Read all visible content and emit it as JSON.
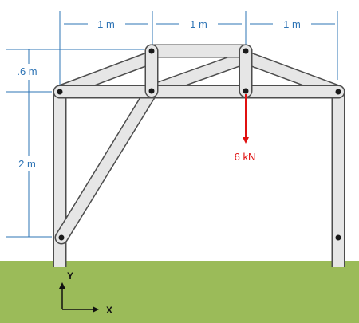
{
  "dimensions": {
    "horizontal": [
      "1 m",
      "1 m",
      "1 m"
    ],
    "rise": ".6 m",
    "column_height": "2 m"
  },
  "load": {
    "label": "6 kN",
    "color": "#e01010"
  },
  "axes": {
    "x_label": "X",
    "y_label": "Y"
  },
  "colors": {
    "ground": "#9bbb59",
    "member_fill": "#e6e6e6",
    "member_stroke": "#4d4d4d",
    "pin": "#1a1a1a",
    "dimension": "#2e74b5"
  }
}
